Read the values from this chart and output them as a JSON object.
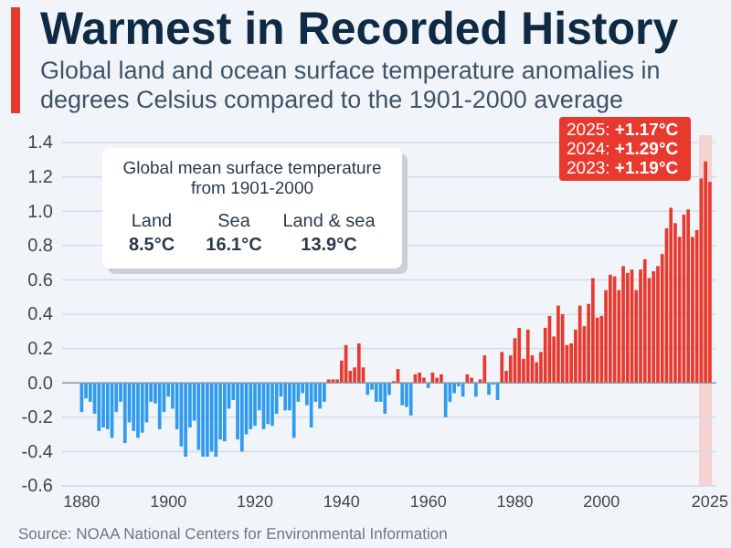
{
  "chart_data": {
    "type": "bar",
    "title": "Warmest in Recorded History",
    "subtitle": "Global land and ocean surface temperature anomalies in degrees Celsius compared to the 1901-2000 average",
    "x": [
      1880,
      1881,
      1882,
      1883,
      1884,
      1885,
      1886,
      1887,
      1888,
      1889,
      1890,
      1891,
      1892,
      1893,
      1894,
      1895,
      1896,
      1897,
      1898,
      1899,
      1900,
      1901,
      1902,
      1903,
      1904,
      1905,
      1906,
      1907,
      1908,
      1909,
      1910,
      1911,
      1912,
      1913,
      1914,
      1915,
      1916,
      1917,
      1918,
      1919,
      1920,
      1921,
      1922,
      1923,
      1924,
      1925,
      1926,
      1927,
      1928,
      1929,
      1930,
      1931,
      1932,
      1933,
      1934,
      1935,
      1936,
      1937,
      1938,
      1939,
      1940,
      1941,
      1942,
      1943,
      1944,
      1945,
      1946,
      1947,
      1948,
      1949,
      1950,
      1951,
      1952,
      1953,
      1954,
      1955,
      1956,
      1957,
      1958,
      1959,
      1960,
      1961,
      1962,
      1963,
      1964,
      1965,
      1966,
      1967,
      1968,
      1969,
      1970,
      1971,
      1972,
      1973,
      1974,
      1975,
      1976,
      1977,
      1978,
      1979,
      1980,
      1981,
      1982,
      1983,
      1984,
      1985,
      1986,
      1987,
      1988,
      1989,
      1990,
      1991,
      1992,
      1993,
      1994,
      1995,
      1996,
      1997,
      1998,
      1999,
      2000,
      2001,
      2002,
      2003,
      2004,
      2005,
      2006,
      2007,
      2008,
      2009,
      2010,
      2011,
      2012,
      2013,
      2014,
      2015,
      2016,
      2017,
      2018,
      2019,
      2020,
      2021,
      2022,
      2023,
      2024,
      2025
    ],
    "values": [
      -0.17,
      -0.09,
      -0.11,
      -0.18,
      -0.28,
      -0.26,
      -0.27,
      -0.32,
      -0.17,
      -0.11,
      -0.35,
      -0.23,
      -0.28,
      -0.32,
      -0.29,
      -0.23,
      -0.11,
      -0.12,
      -0.27,
      -0.17,
      -0.08,
      -0.15,
      -0.27,
      -0.37,
      -0.43,
      -0.26,
      -0.22,
      -0.39,
      -0.43,
      -0.43,
      -0.4,
      -0.43,
      -0.33,
      -0.34,
      -0.15,
      -0.1,
      -0.33,
      -0.4,
      -0.3,
      -0.27,
      -0.25,
      -0.16,
      -0.27,
      -0.24,
      -0.25,
      -0.18,
      -0.08,
      -0.16,
      -0.16,
      -0.32,
      -0.11,
      -0.06,
      -0.13,
      -0.26,
      -0.11,
      -0.15,
      -0.11,
      0.02,
      0.02,
      0.02,
      0.13,
      0.22,
      0.07,
      0.09,
      0.23,
      0.09,
      -0.07,
      -0.04,
      -0.11,
      -0.11,
      -0.18,
      -0.07,
      0.01,
      0.08,
      -0.13,
      -0.14,
      -0.19,
      0.05,
      0.06,
      0.03,
      -0.03,
      0.06,
      0.03,
      0.05,
      -0.2,
      -0.11,
      -0.06,
      -0.02,
      -0.08,
      0.05,
      0.03,
      -0.08,
      0.02,
      0.16,
      -0.07,
      -0.01,
      -0.1,
      0.18,
      0.07,
      0.16,
      0.26,
      0.32,
      0.14,
      0.31,
      0.16,
      0.12,
      0.18,
      0.32,
      0.39,
      0.27,
      0.45,
      0.4,
      0.22,
      0.23,
      0.31,
      0.45,
      0.33,
      0.46,
      0.61,
      0.38,
      0.39,
      0.54,
      0.63,
      0.62,
      0.54,
      0.68,
      0.64,
      0.66,
      0.54,
      0.66,
      0.72,
      0.61,
      0.65,
      0.68,
      0.75,
      0.9,
      1.02,
      0.93,
      0.85,
      0.98,
      1.01,
      0.85,
      0.89,
      1.19,
      1.29,
      1.17
    ],
    "colors": [
      "#2f9bef",
      "#2f9bef",
      "#2f9bef",
      "#2f9bef",
      "#2f9bef",
      "#2f9bef",
      "#2f9bef",
      "#2f9bef",
      "#2f9bef",
      "#2f9bef",
      "#2f9bef",
      "#2f9bef",
      "#2f9bef",
      "#2f9bef",
      "#2f9bef",
      "#2f9bef",
      "#2f9bef",
      "#2f9bef",
      "#2f9bef",
      "#2f9bef",
      "#2f9bef",
      "#2f9bef",
      "#2f9bef",
      "#2f9bef",
      "#2f9bef",
      "#2f9bef",
      "#2f9bef",
      "#2f9bef",
      "#2f9bef",
      "#2f9bef",
      "#2f9bef",
      "#2f9bef",
      "#2f9bef",
      "#2f9bef",
      "#2f9bef",
      "#2f9bef",
      "#2f9bef",
      "#2f9bef",
      "#2f9bef",
      "#2f9bef",
      "#2f9bef",
      "#2f9bef",
      "#2f9bef",
      "#2f9bef",
      "#2f9bef",
      "#2f9bef",
      "#2f9bef",
      "#2f9bef",
      "#2f9bef",
      "#2f9bef",
      "#2f9bef",
      "#2f9bef",
      "#2f9bef",
      "#2f9bef",
      "#2f9bef",
      "#2f9bef",
      "#2f9bef",
      "#e8392f",
      "#e8392f",
      "#e8392f",
      "#e8392f",
      "#e8392f",
      "#e8392f",
      "#e8392f",
      "#e8392f",
      "#e8392f",
      "#2f9bef",
      "#2f9bef",
      "#2f9bef",
      "#2f9bef",
      "#2f9bef",
      "#2f9bef",
      "#e8392f",
      "#e8392f",
      "#2f9bef",
      "#2f9bef",
      "#2f9bef",
      "#e8392f",
      "#e8392f",
      "#e8392f",
      "#2f9bef",
      "#e8392f",
      "#e8392f",
      "#e8392f",
      "#2f9bef",
      "#2f9bef",
      "#2f9bef",
      "#2f9bef",
      "#2f9bef",
      "#e8392f",
      "#e8392f",
      "#2f9bef",
      "#e8392f",
      "#e8392f",
      "#2f9bef",
      "#2f9bef",
      "#2f9bef",
      "#e8392f",
      "#e8392f",
      "#e8392f",
      "#e8392f",
      "#e8392f",
      "#e8392f",
      "#e8392f",
      "#e8392f",
      "#e8392f",
      "#e8392f",
      "#e8392f",
      "#e8392f",
      "#e8392f",
      "#e8392f",
      "#e8392f",
      "#e8392f",
      "#e8392f",
      "#e8392f",
      "#e8392f",
      "#e8392f",
      "#e8392f",
      "#e8392f",
      "#e8392f",
      "#e8392f",
      "#e8392f",
      "#e8392f",
      "#e8392f",
      "#e8392f",
      "#e8392f",
      "#e8392f",
      "#e8392f",
      "#e8392f",
      "#e8392f",
      "#e8392f",
      "#e8392f",
      "#e8392f",
      "#e8392f",
      "#e8392f",
      "#e8392f",
      "#e8392f",
      "#e8392f",
      "#e8392f",
      "#e8392f",
      "#e8392f",
      "#e8392f",
      "#e8392f",
      "#e8392f",
      "#e8392f",
      "#e8392f"
    ],
    "xlim": [
      1875.5,
      2026.5
    ],
    "xticks": [
      1880,
      1900,
      1920,
      1940,
      1960,
      1980,
      2000,
      2025
    ],
    "ylim": [
      -0.6,
      1.4
    ],
    "yticks": [
      {
        "value": -0.6,
        "label": "-0.6"
      },
      {
        "value": -0.4,
        "label": "-0.4"
      },
      {
        "value": -0.2,
        "label": "-0.2"
      },
      {
        "value": 0,
        "label": "0.0"
      },
      {
        "value": 0.2,
        "label": "0.2"
      },
      {
        "value": 0.4,
        "label": "0.4"
      },
      {
        "value": 0.6,
        "label": "0.6"
      },
      {
        "value": 0.8,
        "label": "0.8"
      },
      {
        "value": 1,
        "label": "1.0"
      },
      {
        "value": 1.2,
        "label": "1.2"
      },
      {
        "value": 1.4,
        "label": "1.4"
      }
    ],
    "grid": "y",
    "bands": [
      {
        "axis": "x",
        "from": 2022.5,
        "to": 2025.5,
        "color": "#f6d2d2"
      }
    ],
    "annotations": [
      "Global mean surface temperature from 1901-2000",
      "Land",
      "8.5°C",
      "Sea",
      "16.1°C",
      "Land & sea",
      "13.9°C",
      "2025: +1.17°C",
      "2024: +1.29°C",
      "2023: +1.19°C",
      "Source: NOAA National Centers for Environmental Information"
    ]
  }
}
